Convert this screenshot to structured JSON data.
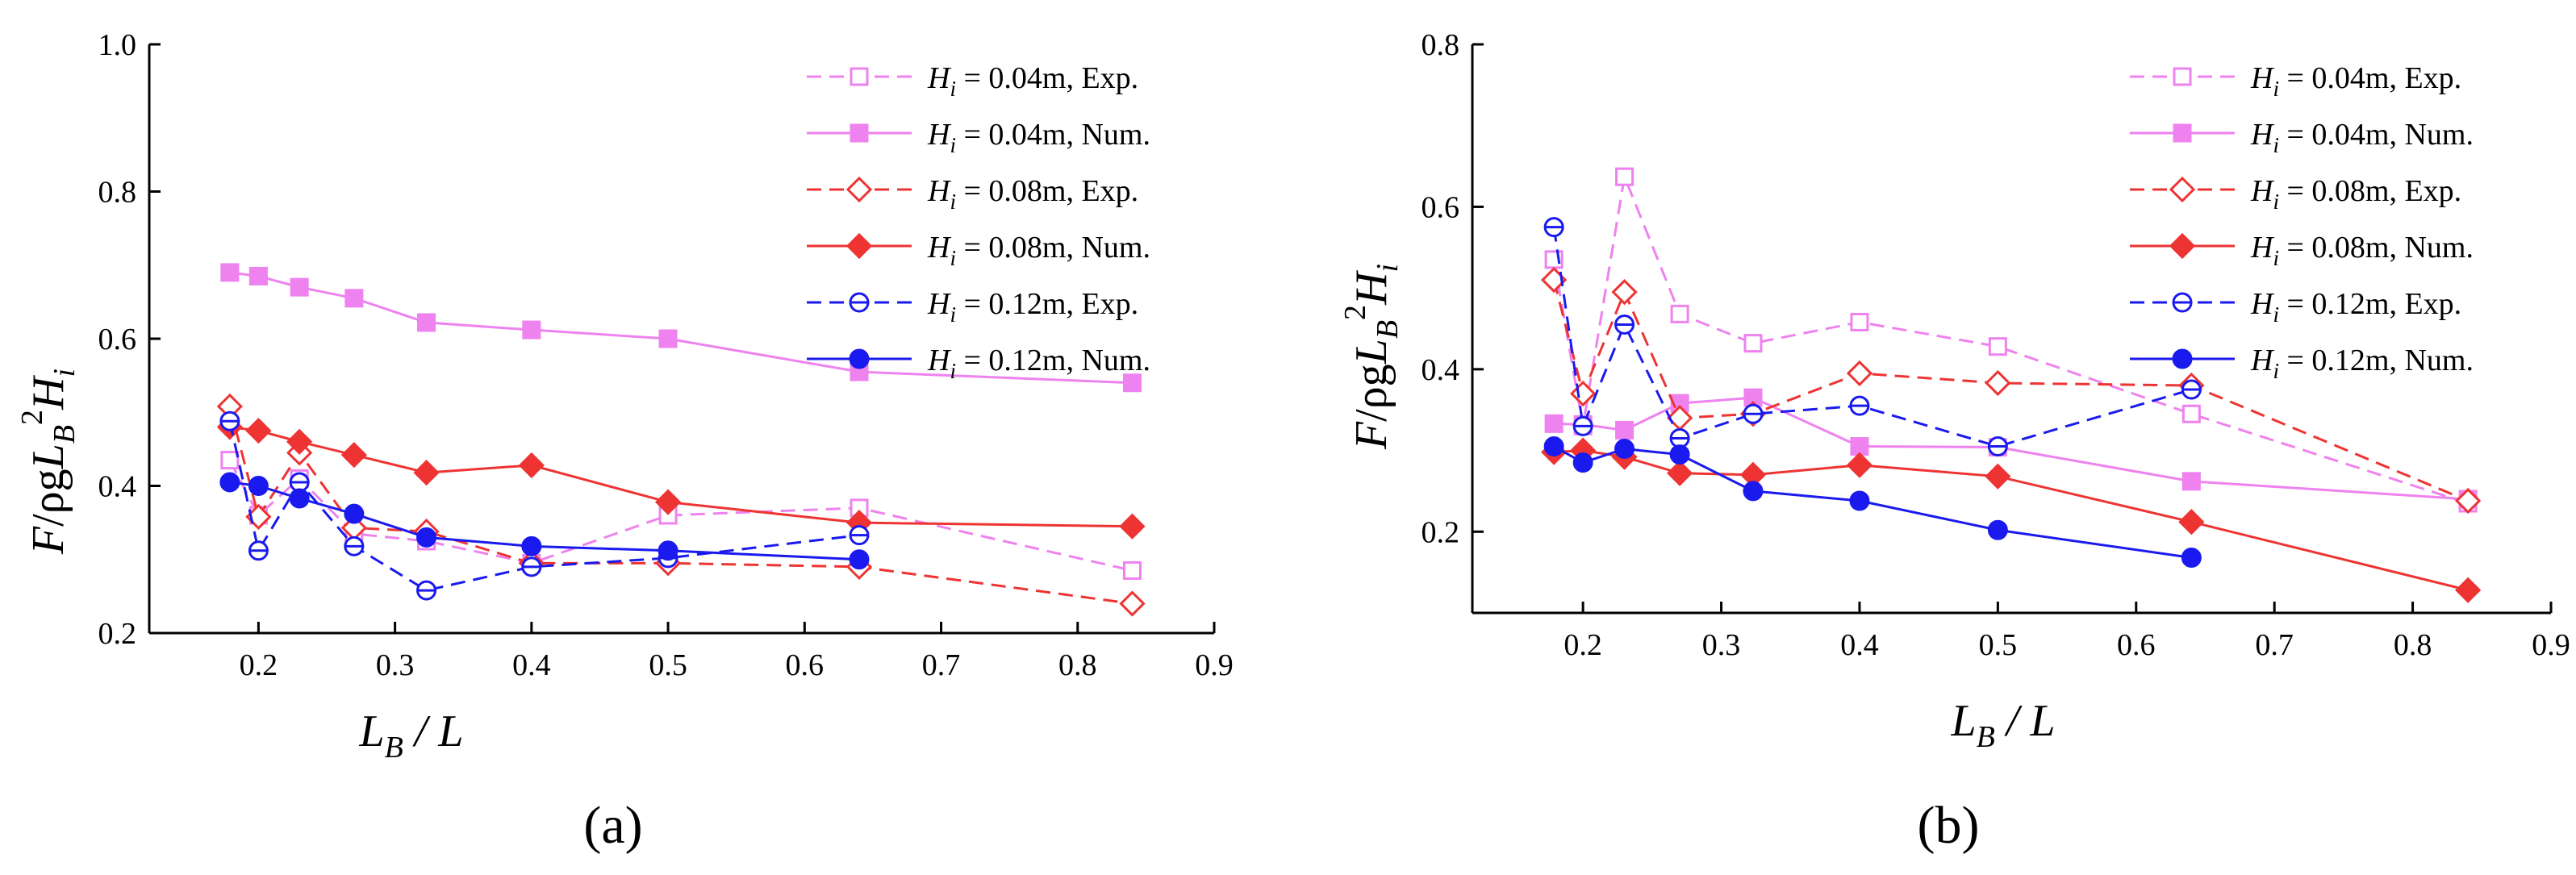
{
  "figure": {
    "xlabel_main": "L",
    "xlabel_sub": "B",
    "xlabel_rest": " / L",
    "ylabel_f": "F",
    "ylabel_rho": "/ρg",
    "ylabel_l": "L",
    "ylabel_lsub": "B",
    "ylabel_sup": "2",
    "ylabel_h": "H",
    "ylabel_hsub": "i",
    "legend_h": "H",
    "legend_sub": "i"
  },
  "chart_data": [
    {
      "type": "line",
      "panel_label": "(a)",
      "xlim": [
        0.12,
        0.9
      ],
      "ylim": [
        0.2,
        1.0
      ],
      "xticks": [
        0.2,
        0.3,
        0.4,
        0.5,
        0.6,
        0.7,
        0.8,
        0.9
      ],
      "yticks": [
        0.2,
        0.4,
        0.6,
        0.8,
        1.0
      ],
      "xtick_labels": [
        "0.2",
        "0.3",
        "0.4",
        "0.5",
        "0.6",
        "0.7",
        "0.8",
        "0.9"
      ],
      "ytick_labels": [
        "0.2",
        "0.4",
        "0.6",
        "0.8",
        "1.0"
      ],
      "xlabel": "LB / L",
      "ylabel": "F/ρgLB2Hi",
      "grid": false,
      "legend_position": "top-right",
      "series": [
        {
          "name": "Hi = 0.04m, Exp.",
          "legend_text": " = 0.04m, Exp.",
          "color": "#ee82ee",
          "dashed": true,
          "marker": "square-open",
          "x": [
            0.179,
            0.2,
            0.23,
            0.27,
            0.323,
            0.4,
            0.5,
            0.64,
            0.84
          ],
          "y": [
            0.435,
            0.36,
            0.41,
            0.335,
            0.325,
            0.295,
            0.36,
            0.37,
            0.285
          ]
        },
        {
          "name": "Hi = 0.04m, Num.",
          "legend_text": " = 0.04m, Num.",
          "color": "#ee82ee",
          "dashed": false,
          "marker": "square-filled",
          "x": [
            0.179,
            0.2,
            0.23,
            0.27,
            0.323,
            0.4,
            0.5,
            0.64,
            0.84
          ],
          "y": [
            0.69,
            0.685,
            0.67,
            0.655,
            0.622,
            0.612,
            0.6,
            0.555,
            0.54
          ]
        },
        {
          "name": "Hi = 0.08m, Exp.",
          "legend_text": " = 0.08m, Exp.",
          "color": "#ee3333",
          "dashed": true,
          "marker": "diamond-open",
          "x": [
            0.179,
            0.2,
            0.23,
            0.27,
            0.323,
            0.4,
            0.5,
            0.64,
            0.84
          ],
          "y": [
            0.508,
            0.358,
            0.445,
            0.343,
            0.338,
            0.295,
            0.295,
            0.29,
            0.24
          ]
        },
        {
          "name": "Hi = 0.08m, Num.",
          "legend_text": " = 0.08m, Num.",
          "color": "#ee3333",
          "dashed": false,
          "marker": "diamond-filled",
          "x": [
            0.179,
            0.2,
            0.23,
            0.27,
            0.323,
            0.4,
            0.5,
            0.64,
            0.84
          ],
          "y": [
            0.48,
            0.475,
            0.46,
            0.442,
            0.418,
            0.428,
            0.378,
            0.35,
            0.345
          ]
        },
        {
          "name": "Hi = 0.12m, Exp.",
          "legend_text": " = 0.12m, Exp.",
          "color": "#1a1aee",
          "dashed": true,
          "marker": "circle-open",
          "x": [
            0.179,
            0.2,
            0.23,
            0.27,
            0.323,
            0.4,
            0.5,
            0.64
          ],
          "y": [
            0.488,
            0.312,
            0.405,
            0.318,
            0.258,
            0.29,
            0.302,
            0.333
          ]
        },
        {
          "name": "Hi = 0.12m, Num.",
          "legend_text": " = 0.12m, Num.",
          "color": "#1a1aee",
          "dashed": false,
          "marker": "circle-filled",
          "x": [
            0.179,
            0.2,
            0.23,
            0.27,
            0.323,
            0.4,
            0.5,
            0.64
          ],
          "y": [
            0.405,
            0.4,
            0.383,
            0.362,
            0.33,
            0.318,
            0.312,
            0.3
          ]
        }
      ]
    },
    {
      "type": "line",
      "panel_label": "(b)",
      "xlim": [
        0.12,
        0.9
      ],
      "ylim": [
        0.1,
        0.8
      ],
      "xticks": [
        0.2,
        0.3,
        0.4,
        0.5,
        0.6,
        0.7,
        0.8,
        0.9
      ],
      "yticks": [
        0.2,
        0.4,
        0.6,
        0.8
      ],
      "xtick_labels": [
        "0.2",
        "0.3",
        "0.4",
        "0.5",
        "0.6",
        "0.7",
        "0.8",
        "0.9"
      ],
      "ytick_labels": [
        "0.2",
        "0.4",
        "0.6",
        "0.8"
      ],
      "xlabel": "LB / L",
      "ylabel": "F/ρgLB2Hi",
      "grid": false,
      "legend_position": "top-right",
      "series": [
        {
          "name": "Hi = 0.04m, Exp.",
          "legend_text": " = 0.04m, Exp.",
          "color": "#ee82ee",
          "dashed": true,
          "marker": "square-open",
          "x": [
            0.179,
            0.2,
            0.23,
            0.27,
            0.323,
            0.4,
            0.5,
            0.64,
            0.84
          ],
          "y": [
            0.535,
            0.33,
            0.637,
            0.468,
            0.432,
            0.458,
            0.428,
            0.345,
            0.235
          ]
        },
        {
          "name": "Hi = 0.04m, Num.",
          "legend_text": " = 0.04m, Num.",
          "color": "#ee82ee",
          "dashed": false,
          "marker": "square-filled",
          "x": [
            0.179,
            0.2,
            0.23,
            0.27,
            0.323,
            0.4,
            0.5,
            0.64,
            0.84
          ],
          "y": [
            0.333,
            0.332,
            0.325,
            0.358,
            0.365,
            0.305,
            0.304,
            0.262,
            0.24
          ]
        },
        {
          "name": "Hi = 0.08m, Exp.",
          "legend_text": " = 0.08m, Exp.",
          "color": "#ee3333",
          "dashed": true,
          "marker": "diamond-open",
          "x": [
            0.179,
            0.2,
            0.23,
            0.27,
            0.323,
            0.4,
            0.5,
            0.64,
            0.84
          ],
          "y": [
            0.51,
            0.37,
            0.495,
            0.34,
            0.345,
            0.395,
            0.383,
            0.38,
            0.238
          ]
        },
        {
          "name": "Hi = 0.08m, Num.",
          "legend_text": " = 0.08m, Num.",
          "color": "#ee3333",
          "dashed": false,
          "marker": "diamond-filled",
          "x": [
            0.179,
            0.2,
            0.23,
            0.27,
            0.323,
            0.4,
            0.5,
            0.64,
            0.84
          ],
          "y": [
            0.298,
            0.3,
            0.292,
            0.272,
            0.27,
            0.282,
            0.268,
            0.212,
            0.128
          ]
        },
        {
          "name": "Hi = 0.12m, Exp.",
          "legend_text": " = 0.12m, Exp.",
          "color": "#1a1aee",
          "dashed": true,
          "marker": "circle-open",
          "x": [
            0.179,
            0.2,
            0.23,
            0.27,
            0.323,
            0.4,
            0.5,
            0.64
          ],
          "y": [
            0.575,
            0.33,
            0.455,
            0.315,
            0.345,
            0.355,
            0.305,
            0.375
          ]
        },
        {
          "name": "Hi = 0.12m, Num.",
          "legend_text": " = 0.12m, Num.",
          "color": "#1a1aee",
          "dashed": false,
          "marker": "circle-filled",
          "x": [
            0.179,
            0.2,
            0.23,
            0.27,
            0.323,
            0.4,
            0.5,
            0.64
          ],
          "y": [
            0.305,
            0.285,
            0.302,
            0.295,
            0.25,
            0.238,
            0.202,
            0.168
          ]
        }
      ]
    }
  ]
}
